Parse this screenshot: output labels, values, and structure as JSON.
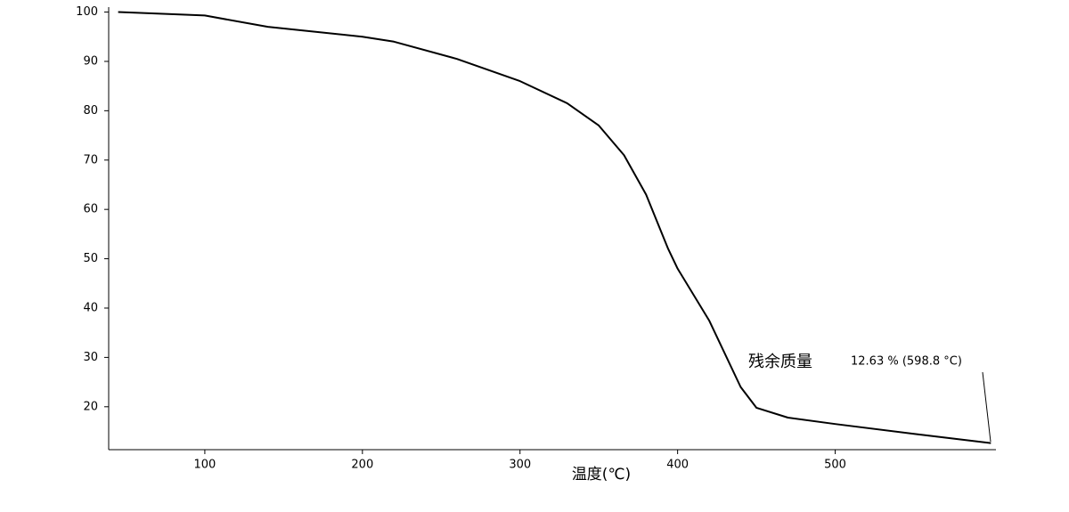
{
  "chart_data": {
    "type": "line",
    "xlabel": "温度(℃)",
    "x": [
      45,
      100,
      140,
      200,
      220,
      260,
      300,
      330,
      350,
      366,
      380,
      394,
      400,
      420,
      440,
      450,
      470,
      500,
      550,
      598.8
    ],
    "series": [
      {
        "color": "#000000",
        "values": [
          100,
          99.3,
          97,
          95,
          94,
          90.5,
          86,
          81.5,
          77,
          71,
          63,
          52,
          48,
          37.5,
          24,
          19.8,
          17.8,
          16.5,
          14.5,
          12.63
        ]
      }
    ],
    "xlim": [
      39,
      602
    ],
    "ylim": [
      11.3,
      101
    ],
    "xticks": [
      100,
      200,
      300,
      400,
      500
    ],
    "yticks": [
      20,
      30,
      40,
      50,
      60,
      70,
      80,
      90,
      100
    ],
    "annotation": {
      "label": "残余质量",
      "text": "12.63 % (598.8 °C)"
    }
  }
}
